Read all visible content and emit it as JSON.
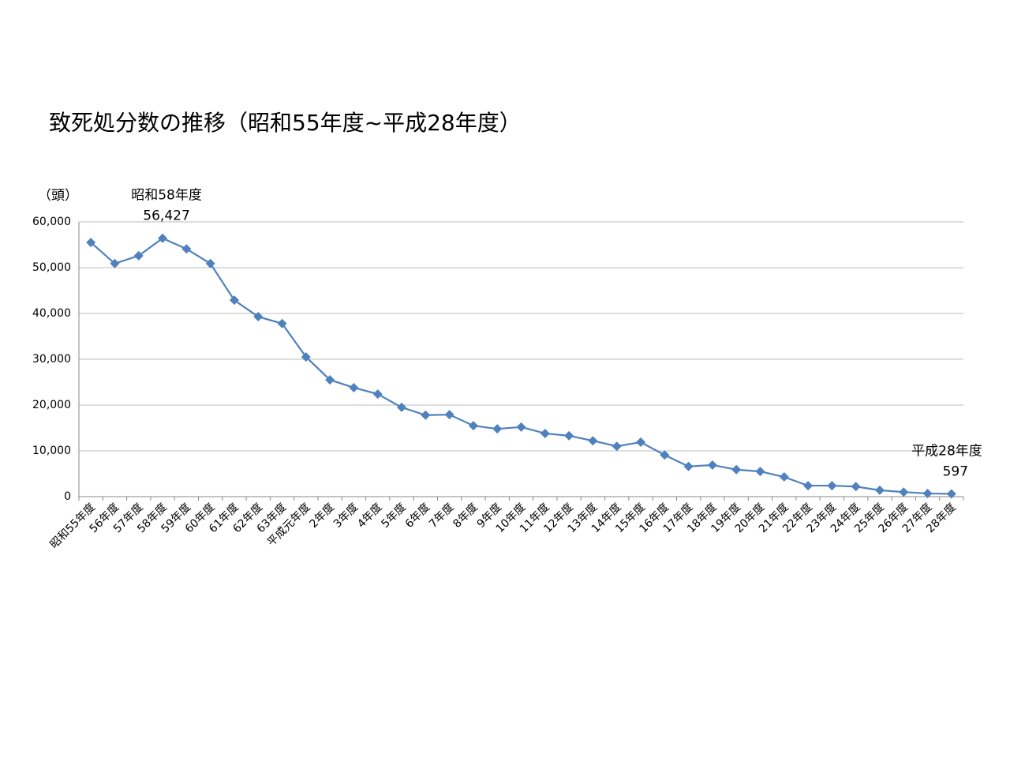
{
  "chart_data": {
    "type": "line",
    "title": "致死処分数の推移（昭和55年度~平成28年度）",
    "y_label": "（頭）",
    "categories": [
      "昭和55年度",
      "56年度",
      "57年度",
      "58年度",
      "59年度",
      "60年度",
      "61年度",
      "62年度",
      "63年度",
      "平成元年度",
      "2年度",
      "3年度",
      "4年度",
      "5年度",
      "6年度",
      "7年度",
      "8年度",
      "9年度",
      "10年度",
      "11年度",
      "12年度",
      "13年度",
      "14年度",
      "15年度",
      "16年度",
      "17年度",
      "18年度",
      "19年度",
      "20年度",
      "21年度",
      "22年度",
      "23年度",
      "24年度",
      "25年度",
      "26年度",
      "27年度",
      "28年度"
    ],
    "values": [
      55500,
      50900,
      52600,
      56427,
      54100,
      50900,
      42900,
      39300,
      37800,
      30500,
      25500,
      23800,
      22400,
      19500,
      17800,
      17900,
      15500,
      14800,
      15200,
      13800,
      13300,
      12200,
      11000,
      11900,
      9100,
      6600,
      6900,
      5900,
      5500,
      4300,
      2400,
      2400,
      2200,
      1400,
      1000,
      700,
      597
    ],
    "value_labels": [
      null,
      null,
      null,
      "56,427",
      null,
      null,
      null,
      null,
      null,
      null,
      null,
      null,
      null,
      null,
      null,
      null,
      null,
      null,
      null,
      null,
      null,
      null,
      null,
      null,
      null,
      null,
      null,
      null,
      null,
      null,
      null,
      null,
      null,
      null,
      null,
      null,
      "597"
    ],
    "annotations": [
      "昭和58年度",
      "平成28年度"
    ],
    "color": "#4f81bd",
    "ylim": [
      0,
      60000
    ],
    "yticks": [
      0,
      {
        "value": 10000,
        "label": "10,000"
      },
      {
        "value": 20000,
        "label": "20,000"
      },
      {
        "value": 30000,
        "label": "30,000"
      },
      {
        "value": 40000,
        "label": "40,000"
      },
      {
        "value": 50000,
        "label": "50,000"
      },
      {
        "value": 60000,
        "label": "60,000"
      }
    ],
    "grid": true
  }
}
